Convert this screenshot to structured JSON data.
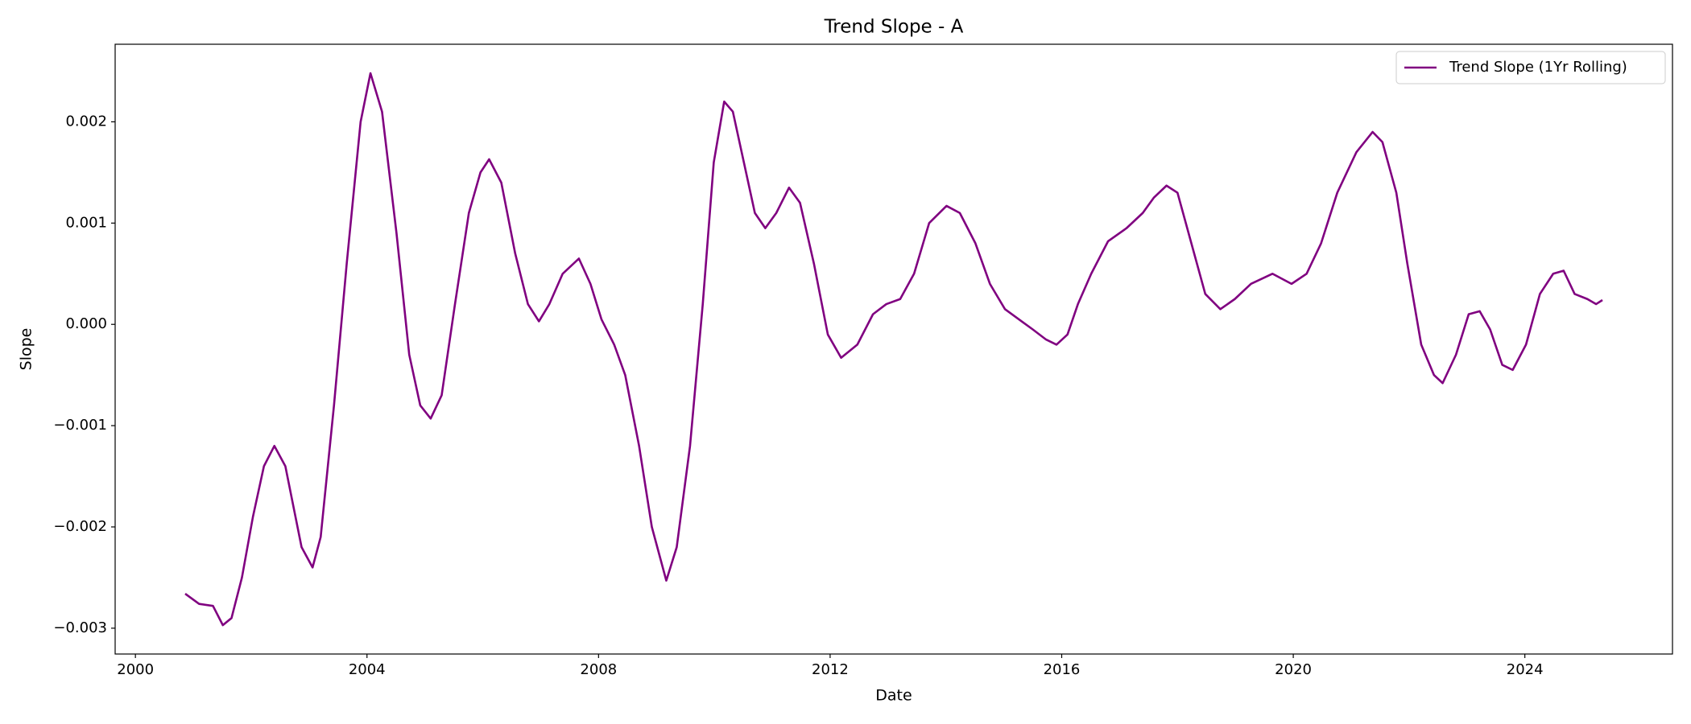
{
  "chart_data": {
    "type": "line",
    "title": "Trend Slope - A",
    "xlabel": "Date",
    "ylabel": "Slope",
    "x": [
      2000.86,
      2001.1,
      2001.34,
      2001.51,
      2001.66,
      2001.84,
      2002.03,
      2002.22,
      2002.4,
      2002.59,
      2002.87,
      2003.06,
      2003.2,
      2003.43,
      2003.65,
      2003.89,
      2004.06,
      2004.26,
      2004.51,
      2004.73,
      2004.92,
      2005.1,
      2005.29,
      2005.52,
      2005.76,
      2005.96,
      2006.11,
      2006.32,
      2006.56,
      2006.78,
      2006.97,
      2007.15,
      2007.38,
      2007.66,
      2007.86,
      2008.05,
      2008.27,
      2008.46,
      2008.7,
      2008.92,
      2009.17,
      2009.35,
      2009.58,
      2009.8,
      2009.99,
      2010.17,
      2010.32,
      2010.51,
      2010.7,
      2010.88,
      2011.07,
      2011.29,
      2011.48,
      2011.72,
      2011.96,
      2012.19,
      2012.47,
      2012.74,
      2012.97,
      2013.21,
      2013.45,
      2013.71,
      2014.01,
      2014.24,
      2014.51,
      2014.76,
      2015.02,
      2015.26,
      2015.5,
      2015.73,
      2015.91,
      2016.1,
      2016.28,
      2016.51,
      2016.8,
      2017.12,
      2017.4,
      2017.59,
      2017.81,
      2018.0,
      2018.24,
      2018.48,
      2018.74,
      2018.99,
      2019.27,
      2019.64,
      2019.97,
      2020.23,
      2020.48,
      2020.76,
      2021.09,
      2021.37,
      2021.54,
      2021.78,
      2021.97,
      2022.21,
      2022.43,
      2022.58,
      2022.81,
      2023.03,
      2023.22,
      2023.4,
      2023.61,
      2023.79,
      2024.02,
      2024.26,
      2024.49,
      2024.67,
      2024.86,
      2025.08,
      2025.23,
      2025.34
    ],
    "series": [
      {
        "name": "Trend Slope (1Yr Rolling)",
        "color": "#800080",
        "values": [
          -0.00266,
          -0.00276,
          -0.00278,
          -0.00297,
          -0.0029,
          -0.0025,
          -0.0019,
          -0.0014,
          -0.0012,
          -0.0014,
          -0.0022,
          -0.0024,
          -0.0021,
          -0.0008,
          0.0006,
          0.002,
          0.00248,
          0.0021,
          0.0009,
          -0.0003,
          -0.0008,
          -0.00093,
          -0.0007,
          0.0002,
          0.0011,
          0.0015,
          0.00163,
          0.0014,
          0.0007,
          0.0002,
          3e-05,
          0.0002,
          0.0005,
          0.00065,
          0.0004,
          5e-05,
          -0.0002,
          -0.0005,
          -0.0012,
          -0.002,
          -0.00253,
          -0.0022,
          -0.0012,
          0.0002,
          0.0016,
          0.0022,
          0.0021,
          0.0016,
          0.0011,
          0.00095,
          0.0011,
          0.00135,
          0.0012,
          0.0006,
          -0.0001,
          -0.00033,
          -0.0002,
          0.0001,
          0.0002,
          0.00025,
          0.0005,
          0.001,
          0.00117,
          0.0011,
          0.0008,
          0.0004,
          0.00015,
          5e-05,
          -5e-05,
          -0.00015,
          -0.0002,
          -0.0001,
          0.0002,
          0.0005,
          0.00082,
          0.00095,
          0.0011,
          0.00125,
          0.00137,
          0.0013,
          0.0008,
          0.0003,
          0.00015,
          0.00025,
          0.0004,
          0.0005,
          0.0004,
          0.0005,
          0.0008,
          0.0013,
          0.0017,
          0.0019,
          0.0018,
          0.0013,
          0.0006,
          -0.0002,
          -0.0005,
          -0.00058,
          -0.0003,
          0.0001,
          0.00013,
          -5e-05,
          -0.0004,
          -0.00045,
          -0.0002,
          0.0003,
          0.0005,
          0.00053,
          0.0003,
          0.00025,
          0.0002,
          0.00024
        ]
      }
    ],
    "xlim": [
      1999.65,
      2026.55
    ],
    "xticks": [
      2000,
      2004,
      2008,
      2012,
      2016,
      2020,
      2024
    ],
    "ylim": [
      -0.003255,
      0.002766
    ],
    "yticks": [
      {
        "value": -0.003,
        "label": "−0.003"
      },
      {
        "value": -0.002,
        "label": "−0.002"
      },
      {
        "value": -0.001,
        "label": "−0.001"
      },
      {
        "value": 0,
        "label": "0.000"
      },
      0.001,
      0.002
    ],
    "legend": "upper right"
  }
}
